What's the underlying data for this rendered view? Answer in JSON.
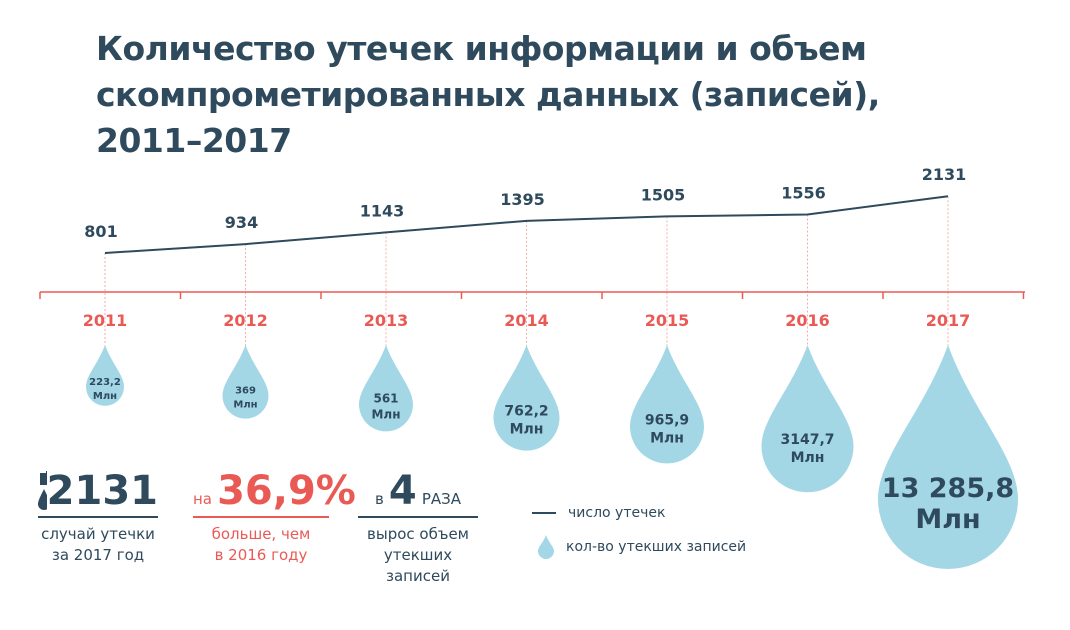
{
  "chart_data": {
    "type": "line",
    "title": "Количество утечек информации и объем скомпрометированных данных (записей), 2011–2017",
    "categories": [
      "2011",
      "2012",
      "2013",
      "2014",
      "2015",
      "2016",
      "2017"
    ],
    "series": [
      {
        "name": "число утечек",
        "values": [
          801,
          934,
          1143,
          1395,
          1505,
          1556,
          2131
        ],
        "labels": [
          "801",
          "934",
          "1143",
          "1395",
          "1505",
          "1556",
          "2131"
        ]
      },
      {
        "name": "кол-во утекших записей",
        "unit": "Млн",
        "values": [
          223.2,
          369,
          561,
          762.2,
          965.9,
          3147.7,
          13285.8
        ],
        "labels": [
          "223,2",
          "369",
          "561",
          "762,2",
          "965,9",
          "3147,7",
          "13 285,8"
        ]
      }
    ],
    "legend": {
      "line": "число утечек",
      "drop": "кол-во утекших записей"
    },
    "unit_label": "Млн"
  },
  "stats": [
    {
      "value": "2131",
      "caption1": "случай утечки",
      "caption2": "за 2017 год"
    },
    {
      "prefix": "на",
      "value": "36,9%",
      "caption1": "больше, чем",
      "caption2": "в 2016 году"
    },
    {
      "prefix": "в",
      "value": "4",
      "suffix": "РАЗА",
      "caption1": "вырос объем",
      "caption2": "утекших записей"
    }
  ],
  "colors": {
    "navy": "#2e4a5c",
    "red": "#ea5a55",
    "drop": "#a3d7e6"
  }
}
